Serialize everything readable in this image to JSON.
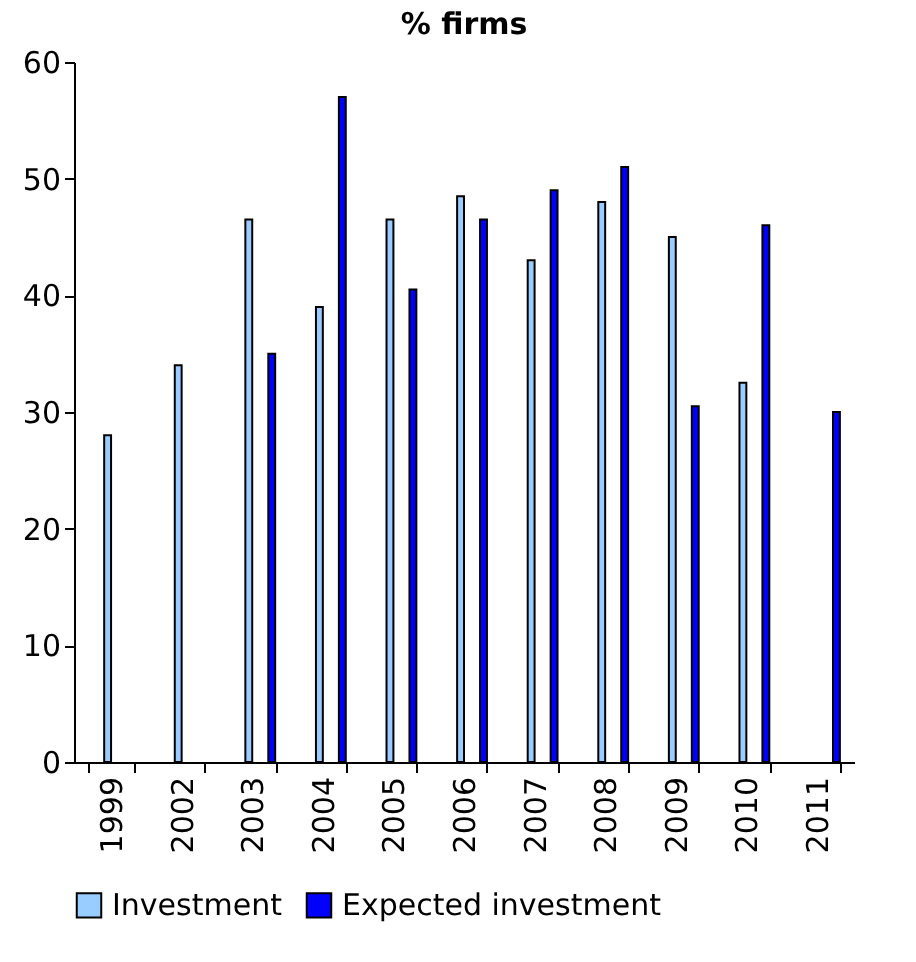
{
  "chart_data": {
    "type": "bar",
    "title": "% firms",
    "categories": [
      "1999",
      "2002",
      "2003",
      "2004",
      "2005",
      "2006",
      "2007",
      "2008",
      "2009",
      "2010",
      "2011"
    ],
    "series": [
      {
        "name": "Investment",
        "color": "#99ccff",
        "values": [
          28,
          34,
          46.5,
          39,
          46.5,
          48.5,
          43,
          48,
          45,
          32.5,
          null
        ]
      },
      {
        "name": "Expected investment",
        "color": "#0000ff",
        "values": [
          null,
          null,
          35,
          57,
          40.5,
          46.5,
          49,
          51,
          30.5,
          46,
          30
        ]
      }
    ],
    "ylim": [
      0,
      60
    ],
    "yticks": [
      0,
      10,
      20,
      30,
      40,
      50,
      60
    ],
    "grid": false,
    "legend": "bottom"
  }
}
